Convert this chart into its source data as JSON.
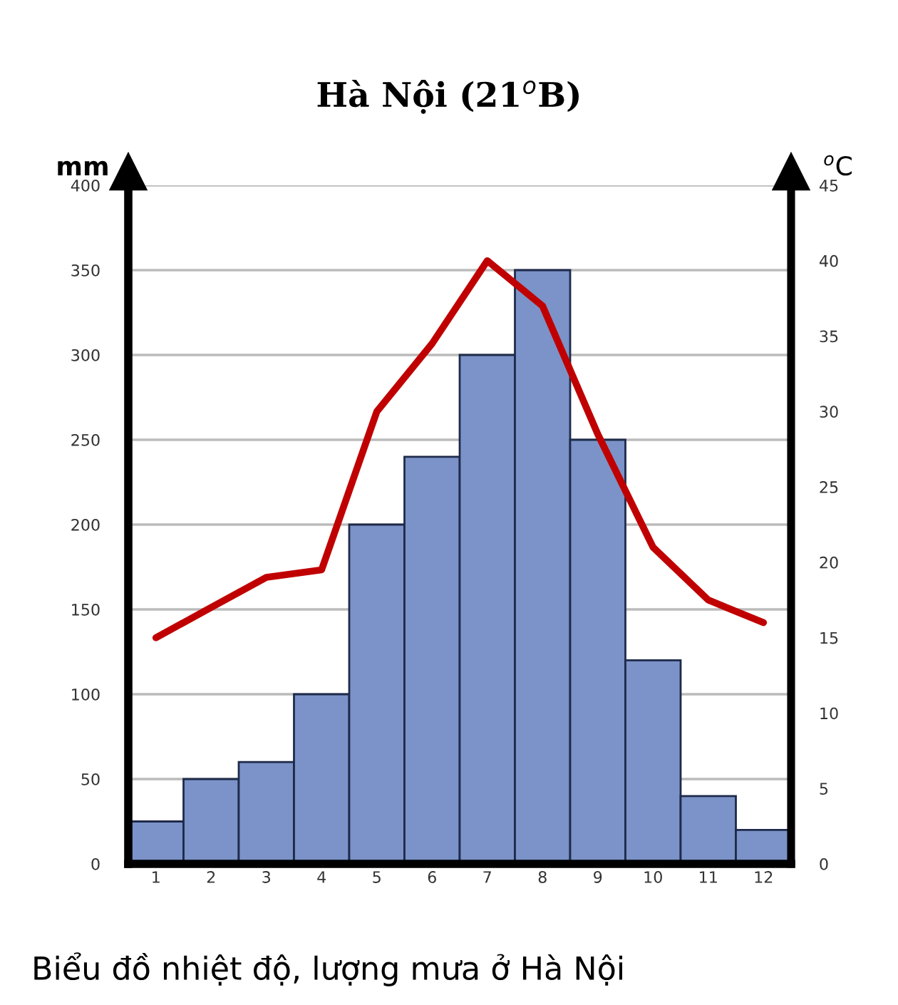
{
  "chart_data": {
    "type": "bar",
    "title": "Hà Nội (21$^{o}$B)",
    "ylabel": "mm",
    "y2label": "$^{o}$C",
    "categories": [
      "1",
      "2",
      "3",
      "4",
      "5",
      "6",
      "7",
      "8",
      "9",
      "10",
      "11",
      "12"
    ],
    "series": [
      {
        "color": "#7b93c8",
        "values": [
          25,
          50,
          60,
          100,
          200,
          240,
          300,
          350,
          250,
          120,
          40,
          20
        ]
      },
      {
        "type": "line",
        "axis": "y2",
        "color": "#c00000",
        "values": [
          15,
          17,
          19,
          19.5,
          30,
          34.5,
          40,
          37,
          28.5,
          21,
          17.5,
          16
        ]
      }
    ],
    "ylim": [
      0,
      400
    ],
    "yticks": [
      0,
      50,
      100,
      150,
      200,
      250,
      300,
      350,
      400
    ],
    "y2lim": [
      0,
      45
    ],
    "y2ticks": [
      0,
      5,
      10,
      15,
      20,
      25,
      30,
      35,
      40,
      45
    ],
    "grid": "y",
    "marker": "none",
    "line_style": "solid",
    "legend": false,
    "annotations": [
      "Biểu đồ nhiệt độ, lượng mưa ở Hà Nội"
    ]
  }
}
